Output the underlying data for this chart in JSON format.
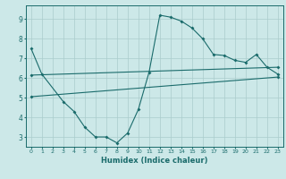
{
  "xlabel": "Humidex (Indice chaleur)",
  "bg_color": "#cce8e8",
  "grid_color": "#aacccc",
  "line_color": "#1a6b6b",
  "xlim": [
    -0.5,
    23.5
  ],
  "ylim": [
    2.5,
    9.7
  ],
  "xticks": [
    0,
    1,
    2,
    3,
    4,
    5,
    6,
    7,
    8,
    9,
    10,
    11,
    12,
    13,
    14,
    15,
    16,
    17,
    18,
    19,
    20,
    21,
    22,
    23
  ],
  "yticks": [
    3,
    4,
    5,
    6,
    7,
    8,
    9
  ],
  "curve1_x": [
    0,
    1,
    3,
    4,
    5,
    6,
    7,
    8,
    9,
    10,
    11,
    12,
    13,
    14,
    15,
    16,
    17,
    18,
    19,
    20,
    21,
    22,
    23
  ],
  "curve1_y": [
    7.5,
    6.2,
    4.8,
    4.3,
    3.5,
    3.0,
    3.0,
    2.7,
    3.2,
    4.4,
    6.3,
    9.2,
    9.1,
    8.9,
    8.55,
    8.0,
    7.2,
    7.15,
    6.9,
    6.8,
    7.2,
    6.55,
    6.2
  ],
  "curve2_x": [
    0,
    23
  ],
  "curve2_y": [
    6.15,
    6.55
  ],
  "curve3_x": [
    0,
    23
  ],
  "curve3_y": [
    5.05,
    6.05
  ]
}
